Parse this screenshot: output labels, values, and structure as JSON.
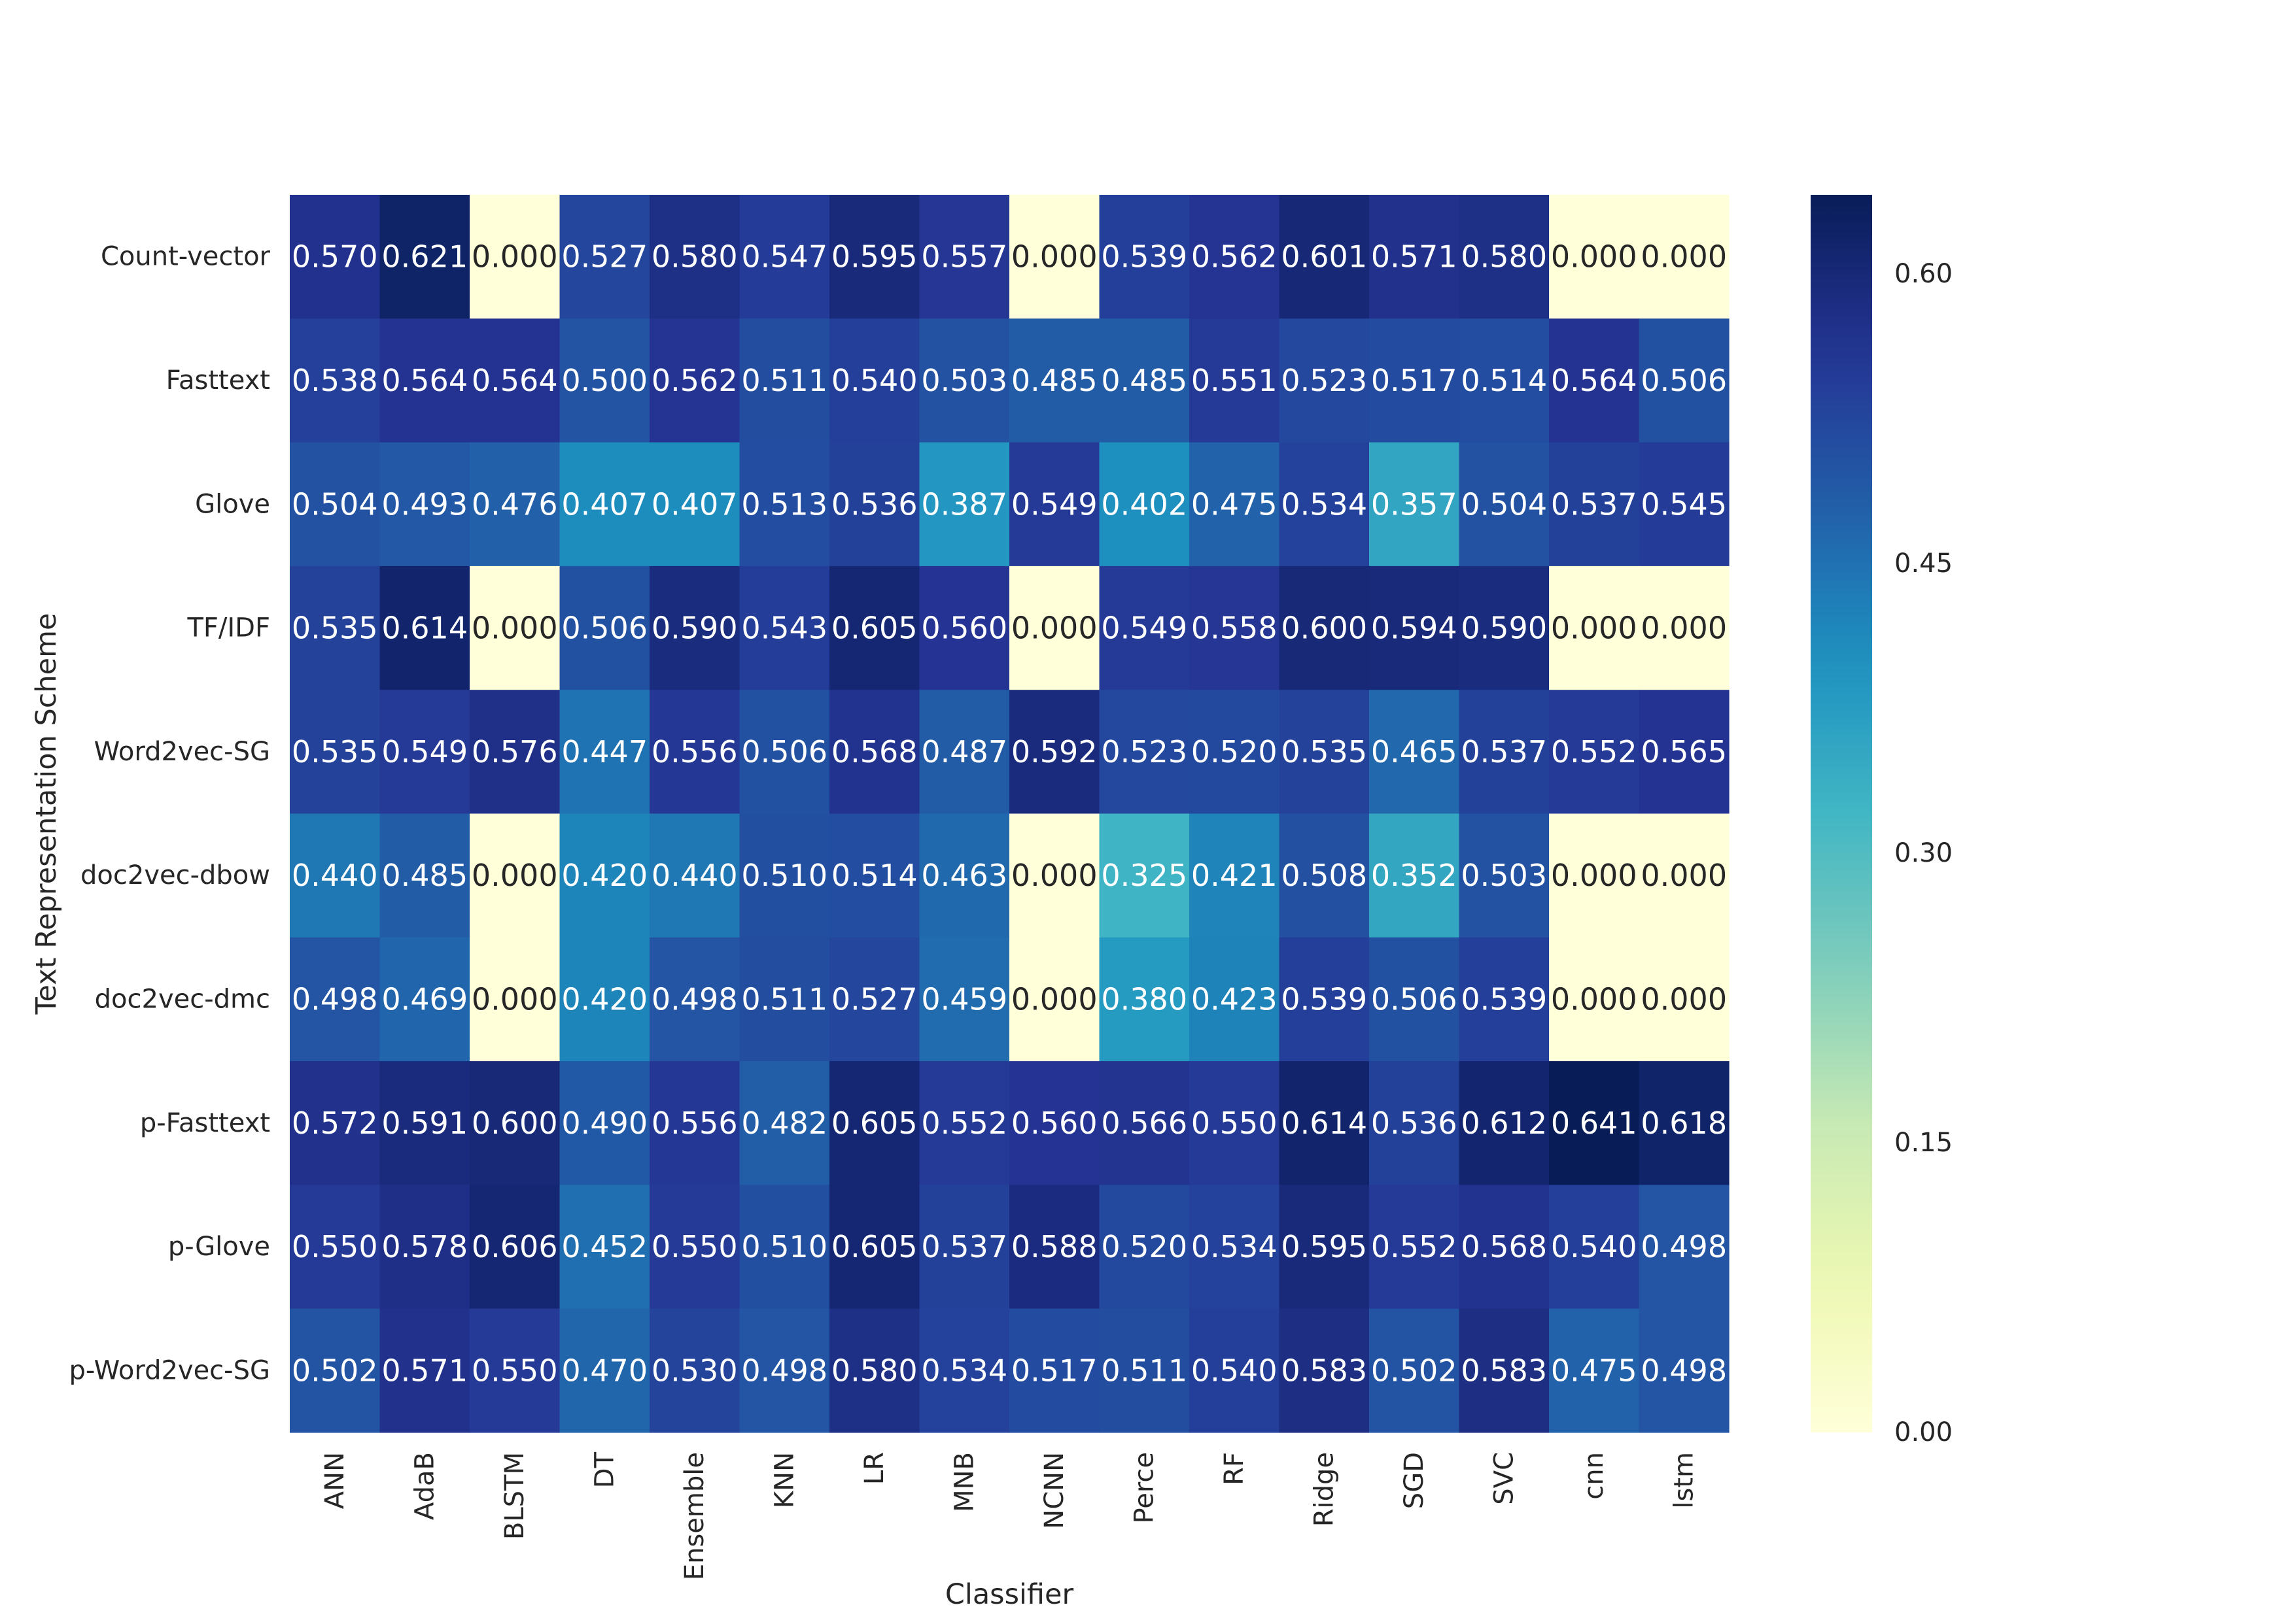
{
  "chart_data": {
    "type": "heatmap",
    "title": "",
    "xlabel": "Classifier",
    "ylabel": "Text Representation Scheme",
    "colormap": "YlGnBu",
    "colorbar": {
      "min": 0.0,
      "max": 0.641,
      "ticks": [
        "0.00",
        "0.15",
        "0.30",
        "0.45",
        "0.60"
      ]
    },
    "columns": [
      "ANN",
      "AdaB",
      "BLSTM",
      "DT",
      "Ensemble",
      "KNN",
      "LR",
      "MNB",
      "NCNN",
      "Perce",
      "RF",
      "Ridge",
      "SGD",
      "SVC",
      "cnn",
      "lstm"
    ],
    "rows": [
      "Count-vector",
      "Fasttext",
      "Glove",
      "TF/IDF",
      "Word2vec-SG",
      "doc2vec-dbow",
      "doc2vec-dmc",
      "p-Fasttext",
      "p-Glove",
      "p-Word2vec-SG"
    ],
    "values": [
      [
        "0.570",
        "0.621",
        "0.000",
        "0.527",
        "0.580",
        "0.547",
        "0.595",
        "0.557",
        "0.000",
        "0.539",
        "0.562",
        "0.601",
        "0.571",
        "0.580",
        "0.000",
        "0.000"
      ],
      [
        "0.538",
        "0.564",
        "0.564",
        "0.500",
        "0.562",
        "0.511",
        "0.540",
        "0.503",
        "0.485",
        "0.485",
        "0.551",
        "0.523",
        "0.517",
        "0.514",
        "0.564",
        "0.506"
      ],
      [
        "0.504",
        "0.493",
        "0.476",
        "0.407",
        "0.407",
        "0.513",
        "0.536",
        "0.387",
        "0.549",
        "0.402",
        "0.475",
        "0.534",
        "0.357",
        "0.504",
        "0.537",
        "0.545"
      ],
      [
        "0.535",
        "0.614",
        "0.000",
        "0.506",
        "0.590",
        "0.543",
        "0.605",
        "0.560",
        "0.000",
        "0.549",
        "0.558",
        "0.600",
        "0.594",
        "0.590",
        "0.000",
        "0.000"
      ],
      [
        "0.535",
        "0.549",
        "0.576",
        "0.447",
        "0.556",
        "0.506",
        "0.568",
        "0.487",
        "0.592",
        "0.523",
        "0.520",
        "0.535",
        "0.465",
        "0.537",
        "0.552",
        "0.565"
      ],
      [
        "0.440",
        "0.485",
        "0.000",
        "0.420",
        "0.440",
        "0.510",
        "0.514",
        "0.463",
        "0.000",
        "0.325",
        "0.421",
        "0.508",
        "0.352",
        "0.503",
        "0.000",
        "0.000"
      ],
      [
        "0.498",
        "0.469",
        "0.000",
        "0.420",
        "0.498",
        "0.511",
        "0.527",
        "0.459",
        "0.000",
        "0.380",
        "0.423",
        "0.539",
        "0.506",
        "0.539",
        "0.000",
        "0.000"
      ],
      [
        "0.572",
        "0.591",
        "0.600",
        "0.490",
        "0.556",
        "0.482",
        "0.605",
        "0.552",
        "0.560",
        "0.566",
        "0.550",
        "0.614",
        "0.536",
        "0.612",
        "0.641",
        "0.618"
      ],
      [
        "0.550",
        "0.578",
        "0.606",
        "0.452",
        "0.550",
        "0.510",
        "0.605",
        "0.537",
        "0.588",
        "0.520",
        "0.534",
        "0.595",
        "0.552",
        "0.568",
        "0.540",
        "0.498"
      ],
      [
        "0.502",
        "0.571",
        "0.550",
        "0.470",
        "0.530",
        "0.498",
        "0.580",
        "0.534",
        "0.517",
        "0.511",
        "0.540",
        "0.583",
        "0.502",
        "0.583",
        "0.475",
        "0.498"
      ]
    ]
  }
}
